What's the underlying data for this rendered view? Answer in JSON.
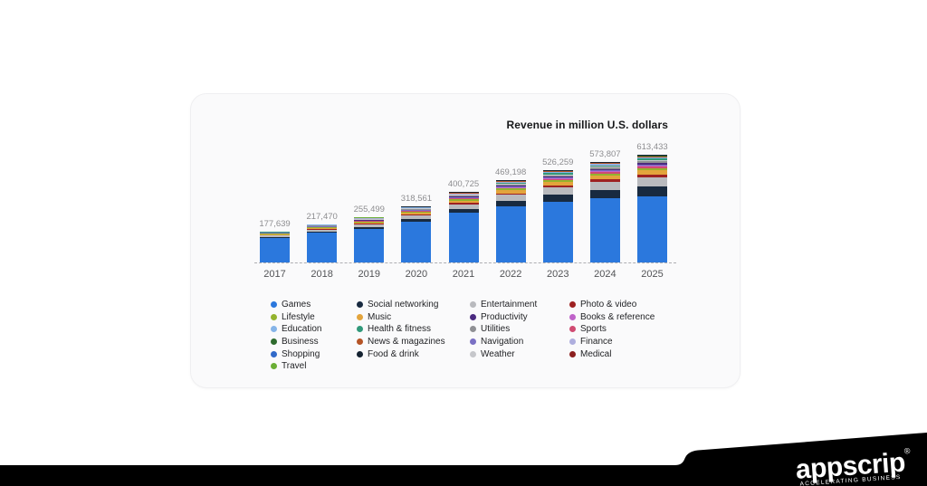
{
  "chart_data": {
    "type": "bar",
    "stacked": true,
    "title": "Revenue in million U.S. dollars",
    "xlabel": "",
    "ylabel": "Revenue in million U.S. dollars",
    "ylim": [
      0,
      650000
    ],
    "grid": false,
    "baseline_style": "dashed",
    "legend_position": "bottom",
    "categories": [
      {
        "name": "Games",
        "color": "#2b78dd"
      },
      {
        "name": "Social networking",
        "color": "#182a40"
      },
      {
        "name": "Entertainment",
        "color": "#b9babe"
      },
      {
        "name": "Photo & video",
        "color": "#9e2121"
      },
      {
        "name": "Music",
        "color": "#e3a43c"
      },
      {
        "name": "Lifestyle",
        "color": "#93b32e"
      },
      {
        "name": "Sports",
        "color": "#d04b72"
      },
      {
        "name": "Books & reference",
        "color": "#bf63c9"
      },
      {
        "name": "Navigation",
        "color": "#7a70c4"
      },
      {
        "name": "Productivity",
        "color": "#4b2a80"
      },
      {
        "name": "Utilities",
        "color": "#8f9094"
      },
      {
        "name": "Weather",
        "color": "#c6c7cb"
      },
      {
        "name": "Health & fitness",
        "color": "#31997a"
      },
      {
        "name": "Finance",
        "color": "#aeaede"
      },
      {
        "name": "Education",
        "color": "#85b4e8"
      },
      {
        "name": "News & magazines",
        "color": "#b55426"
      },
      {
        "name": "Business",
        "color": "#2e6b2e"
      },
      {
        "name": "Shopping",
        "color": "#3069c9"
      },
      {
        "name": "Food & drink",
        "color": "#142231"
      },
      {
        "name": "Travel",
        "color": "#6aae35"
      },
      {
        "name": "Medical",
        "color": "#8c1f1f"
      }
    ],
    "bars": [
      {
        "year": "2017",
        "total": 177639,
        "total_label": "177,639",
        "values": [
          140335,
          4974,
          8527,
          1776,
          5329,
          3553,
          1066,
          1066,
          1243,
          1421,
          1776,
          1243,
          1421,
          711,
          888,
          711,
          533,
          355,
          355,
          178,
          178
        ]
      },
      {
        "year": "2018",
        "total": 217470,
        "total_label": "217,470",
        "values": [
          167040,
          7829,
          11363,
          2610,
          6742,
          4458,
          1441,
          1414,
          1658,
          1876,
          2311,
          1631,
          1876,
          951,
          1169,
          924,
          707,
          489,
          489,
          245,
          245
        ]
      },
      {
        "year": "2019",
        "total": 255499,
        "total_label": "255,499",
        "values": [
          190666,
          11242,
          14436,
          3577,
          8176,
          5365,
          1852,
          1788,
          2108,
          2363,
          2874,
          2044,
          2363,
          1214,
          1469,
          1150,
          894,
          639,
          639,
          319,
          319
        ]
      },
      {
        "year": "2020",
        "total": 318561,
        "total_label": "318,561",
        "values": [
          230757,
          16565,
          19353,
          5097,
          10513,
          6849,
          2509,
          2389,
          2827,
          3146,
          3783,
          2708,
          3146,
          1633,
          1951,
          1513,
          1195,
          876,
          876,
          438,
          438
        ]
      },
      {
        "year": "2021",
        "total": 400725,
        "total_label": "400,725",
        "values": [
          281509,
          24044,
          26047,
          7213,
          13625,
          8816,
          3406,
          3206,
          3807,
          4208,
          5009,
          3607,
          4208,
          2204,
          2605,
          2004,
          1603,
          1202,
          1202,
          601,
          601
        ]
      },
      {
        "year": "2022",
        "total": 469198,
        "total_label": "469,198",
        "values": [
          319348,
          31906,
          32492,
          9384,
          16422,
          10557,
          4281,
          3988,
          4751,
          5220,
          6158,
          4457,
          5220,
          2757,
          3226,
          2463,
          1994,
          1525,
          1525,
          762,
          762
        ]
      },
      {
        "year": "2023",
        "total": 526259,
        "total_label": "526,259",
        "values": [
          346673,
          39996,
          38680,
          11578,
          18945,
          12104,
          5131,
          4736,
          5657,
          6184,
          7236,
          5263,
          6184,
          3289,
          3815,
          2894,
          2368,
          1842,
          1842,
          921,
          921
        ]
      },
      {
        "year": "2024",
        "total": 573807,
        "total_label": "573,807",
        "values": [
          365431,
          48200,
          44614,
          13771,
          21231,
          13484,
          5953,
          5451,
          6527,
          7101,
          8249,
          6025,
          7101,
          3802,
          4375,
          3299,
          2726,
          2152,
          2152,
          1076,
          1076
        ]
      },
      {
        "year": "2025",
        "total": 613433,
        "total_label": "613,433",
        "values": [
          377261,
          56436,
          50302,
          15949,
          23310,
          14722,
          6748,
          6134,
          7361,
          7975,
          9202,
          6748,
          7975,
          4294,
          4907,
          3681,
          3067,
          2454,
          2454,
          1227,
          1227
        ]
      }
    ],
    "legend_columns": [
      [
        "Games",
        "Lifestyle",
        "Education",
        "Business",
        "Shopping",
        "Travel"
      ],
      [
        "Social networking",
        "Music",
        "Health & fitness",
        "News & magazines",
        "Food & drink"
      ],
      [
        "Entertainment",
        "Productivity",
        "Utilities",
        "Navigation",
        "Weather"
      ],
      [
        "Photo & video",
        "Books & reference",
        "Sports",
        "Finance",
        "Medical"
      ]
    ]
  },
  "footer": {
    "brand": "appscrip",
    "registered": "®",
    "tagline": "ACCELERATING BUSINESS",
    "banner_color": "#000000"
  }
}
